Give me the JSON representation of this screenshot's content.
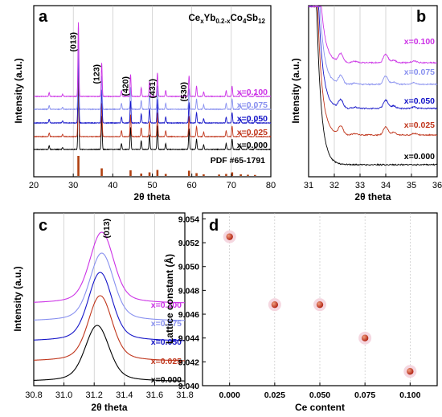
{
  "chart_data": [
    {
      "panel": "a",
      "type": "line",
      "title": "CexYb0.2-xCo4Sb12",
      "title_parts": {
        "a": "Ce",
        "b": "x",
        "c": "Yb",
        "d": "0.2-x",
        "e": "Co",
        "f": "4",
        "g": "Sb",
        "h": "12"
      },
      "xlabel": "2θ theta",
      "ylabel": "Intensity (a.u.)",
      "xlim": [
        20,
        80
      ],
      "xticks": [
        "20",
        "30",
        "40",
        "50",
        "60",
        "70",
        "80"
      ],
      "grid": "vertical",
      "reference_label": "PDF #65-1791",
      "reference_peaks": [
        {
          "x": 31.3,
          "h": 1.0
        },
        {
          "x": 37.2,
          "h": 0.38
        },
        {
          "x": 44.5,
          "h": 0.28
        },
        {
          "x": 47.2,
          "h": 0.12
        },
        {
          "x": 49.3,
          "h": 0.18
        },
        {
          "x": 51.3,
          "h": 0.3
        },
        {
          "x": 53.4,
          "h": 0.1
        },
        {
          "x": 59.3,
          "h": 0.26
        },
        {
          "x": 61.2,
          "h": 0.14
        },
        {
          "x": 63.0,
          "h": 0.08
        },
        {
          "x": 66.9,
          "h": 0.07
        },
        {
          "x": 68.7,
          "h": 0.1
        },
        {
          "x": 70.2,
          "h": 0.18
        },
        {
          "x": 72.4,
          "h": 0.08
        },
        {
          "x": 74.2,
          "h": 0.06
        },
        {
          "x": 76.0,
          "h": 0.05
        }
      ],
      "peak_labels": [
        {
          "x": 31.3,
          "label": "(013)"
        },
        {
          "x": 37.2,
          "label": "(123)"
        },
        {
          "x": 44.5,
          "label": "(420)"
        },
        {
          "x": 51.3,
          "label": "(431)"
        },
        {
          "x": 59.3,
          "label": "(530)"
        }
      ],
      "peaks": [
        {
          "x": 23.9,
          "h": 0.05
        },
        {
          "x": 27.3,
          "h": 0.03
        },
        {
          "x": 31.3,
          "h": 1.0
        },
        {
          "x": 37.2,
          "h": 0.45
        },
        {
          "x": 42.2,
          "h": 0.08
        },
        {
          "x": 44.5,
          "h": 0.3
        },
        {
          "x": 47.2,
          "h": 0.12
        },
        {
          "x": 49.3,
          "h": 0.2
        },
        {
          "x": 51.3,
          "h": 0.32
        },
        {
          "x": 53.4,
          "h": 0.08
        },
        {
          "x": 59.3,
          "h": 0.28
        },
        {
          "x": 61.2,
          "h": 0.14
        },
        {
          "x": 63.0,
          "h": 0.06
        },
        {
          "x": 68.7,
          "h": 0.08
        },
        {
          "x": 70.2,
          "h": 0.14
        },
        {
          "x": 72.4,
          "h": 0.05
        },
        {
          "x": 74.2,
          "h": 0.04
        },
        {
          "x": 76.0,
          "h": 0.04
        }
      ],
      "series": [
        {
          "name": "x=0.000",
          "color": "#000000"
        },
        {
          "name": "x=0.025",
          "color": "#c0361c"
        },
        {
          "name": "x=0.050",
          "color": "#1515c8"
        },
        {
          "name": "x=0.075",
          "color": "#8890ef"
        },
        {
          "name": "x=0.100",
          "color": "#cc33e6"
        }
      ]
    },
    {
      "panel": "b",
      "type": "line",
      "xlabel": "2θ theta",
      "ylabel": "Intensity (a.u.)",
      "xlim": [
        31,
        36
      ],
      "xticks": [
        "31",
        "32",
        "33",
        "34",
        "35",
        "36"
      ],
      "grid": "vertical",
      "peaks": [
        {
          "x": 32.25,
          "h": 0.26
        },
        {
          "x": 32.8,
          "h": 0.04
        },
        {
          "x": 34.0,
          "h": 0.26
        },
        {
          "x": 34.3,
          "h": 0.08
        },
        {
          "x": 35.1,
          "h": 0.05
        }
      ],
      "series": [
        {
          "name": "x=0.000",
          "color": "#000000"
        },
        {
          "name": "x=0.025",
          "color": "#c0361c"
        },
        {
          "name": "x=0.050",
          "color": "#1515c8"
        },
        {
          "name": "x=0.075",
          "color": "#8890ef"
        },
        {
          "name": "x=0.100",
          "color": "#cc33e6"
        }
      ]
    },
    {
      "panel": "c",
      "type": "line",
      "xlabel": "2θ theta",
      "ylabel": "Intensity (a.u.)",
      "xlim": [
        30.8,
        31.8
      ],
      "xticks": [
        "30.8",
        "31.0",
        "31.2",
        "31.4",
        "31.6",
        "31.8"
      ],
      "grid": "vertical",
      "peak_label": {
        "x": 31.29,
        "label": "(013)"
      },
      "series": [
        {
          "name": "x=0.000",
          "color": "#000000",
          "center": 31.22
        },
        {
          "name": "x=0.025",
          "color": "#c0361c",
          "center": 31.24
        },
        {
          "name": "x=0.050",
          "color": "#1515c8",
          "center": 31.24
        },
        {
          "name": "x=0.075",
          "color": "#8890ef",
          "center": 31.25
        },
        {
          "name": "x=0.100",
          "color": "#cc33e6",
          "center": 31.25
        }
      ]
    },
    {
      "panel": "d",
      "type": "scatter",
      "xlabel": "Ce content",
      "ylabel": "Lattice constant (Å)",
      "xlim": [
        -0.015,
        0.115
      ],
      "ylim": [
        9.04,
        9.0545
      ],
      "xticks": [
        "0.000",
        "0.025",
        "0.050",
        "0.075",
        "0.100"
      ],
      "yticks": [
        "9.040",
        "9.042",
        "9.044",
        "9.046",
        "9.048",
        "9.050",
        "9.052",
        "9.054"
      ],
      "grid": "vertical",
      "marker_color": "#b32616",
      "x": [
        0.0,
        0.025,
        0.05,
        0.075,
        0.1
      ],
      "y": [
        9.0525,
        9.0468,
        9.0468,
        9.044,
        9.0412
      ]
    }
  ]
}
